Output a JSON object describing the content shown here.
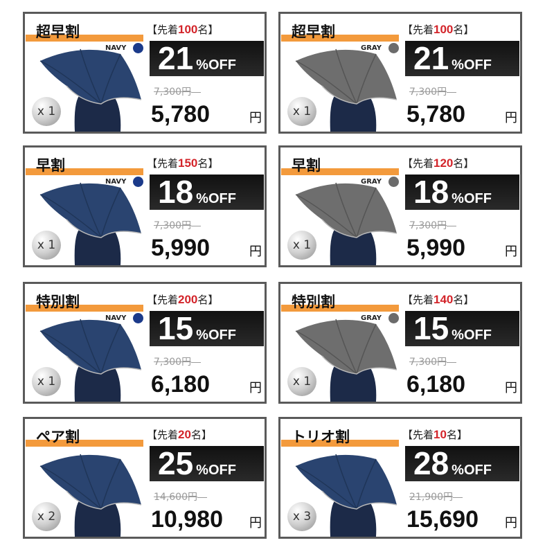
{
  "colors": {
    "accent_bar": "#f39a3c",
    "limit_number": "#d3242a",
    "navy": "#1b3a8a",
    "gray": "#6b6b6b"
  },
  "labels": {
    "limit_prefix": "【先着",
    "limit_suffix": "名】",
    "off_suffix": "%OFF",
    "yen": "円"
  },
  "cards": [
    {
      "title": "超早割",
      "limit": "100",
      "discount": "21",
      "original_price": "7,300円",
      "price": "5,780",
      "color": "NAVY",
      "quantity": "x 1"
    },
    {
      "title": "超早割",
      "limit": "100",
      "discount": "21",
      "original_price": "7,300円",
      "price": "5,780",
      "color": "GRAY",
      "quantity": "x 1"
    },
    {
      "title": "早割",
      "limit": "150",
      "discount": "18",
      "original_price": "7,300円",
      "price": "5,990",
      "color": "NAVY",
      "quantity": "x 1"
    },
    {
      "title": "早割",
      "limit": "120",
      "discount": "18",
      "original_price": "7,300円",
      "price": "5,990",
      "color": "GRAY",
      "quantity": "x 1"
    },
    {
      "title": "特別割",
      "limit": "200",
      "discount": "15",
      "original_price": "7,300円",
      "price": "6,180",
      "color": "NAVY",
      "quantity": "x 1"
    },
    {
      "title": "特別割",
      "limit": "140",
      "discount": "15",
      "original_price": "7,300円",
      "price": "6,180",
      "color": "GRAY",
      "quantity": "x 1"
    },
    {
      "title": "ペア割",
      "limit": "20",
      "discount": "25",
      "original_price": "14,600円",
      "price": "10,980",
      "color": "",
      "quantity": "x 2"
    },
    {
      "title": "トリオ割",
      "limit": "10",
      "discount": "28",
      "original_price": "21,900円",
      "price": "15,690",
      "color": "",
      "quantity": "x 3"
    }
  ]
}
